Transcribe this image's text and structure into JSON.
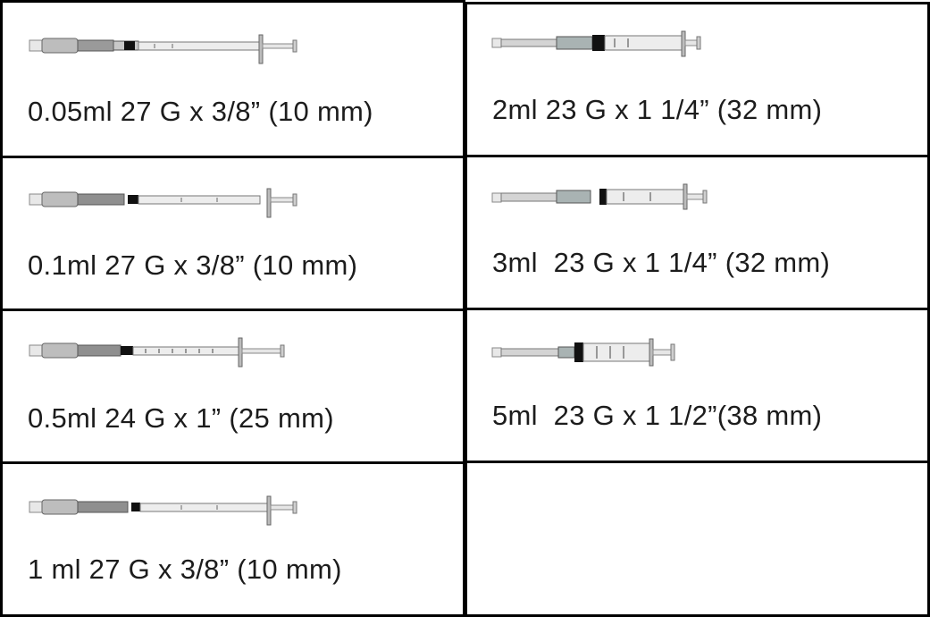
{
  "left_column": [
    {
      "label": "0.05ml 27 G x 3/8” (10 mm)",
      "icon": "syringe-safety-icon"
    },
    {
      "label": "0.1ml 27 G x 3/8” (10 mm)",
      "icon": "syringe-safety-icon"
    },
    {
      "label": "0.5ml 24 G x 1” (25 mm)",
      "icon": "syringe-safety-icon"
    },
    {
      "label": "1 ml 27 G x 3/8” (10 mm)",
      "icon": "syringe-safety-icon"
    }
  ],
  "right_column": [
    {
      "label": "2ml 23 G x 1 1/4” (32 mm)",
      "icon": "syringe-safety-icon"
    },
    {
      "label": "3ml  23 G x 1 1/4” (32 mm)",
      "icon": "syringe-safety-icon"
    },
    {
      "label": "5ml  23 G x 1 1/2”(38 mm)",
      "icon": "syringe-safety-icon"
    },
    {
      "label": "",
      "icon": ""
    }
  ]
}
